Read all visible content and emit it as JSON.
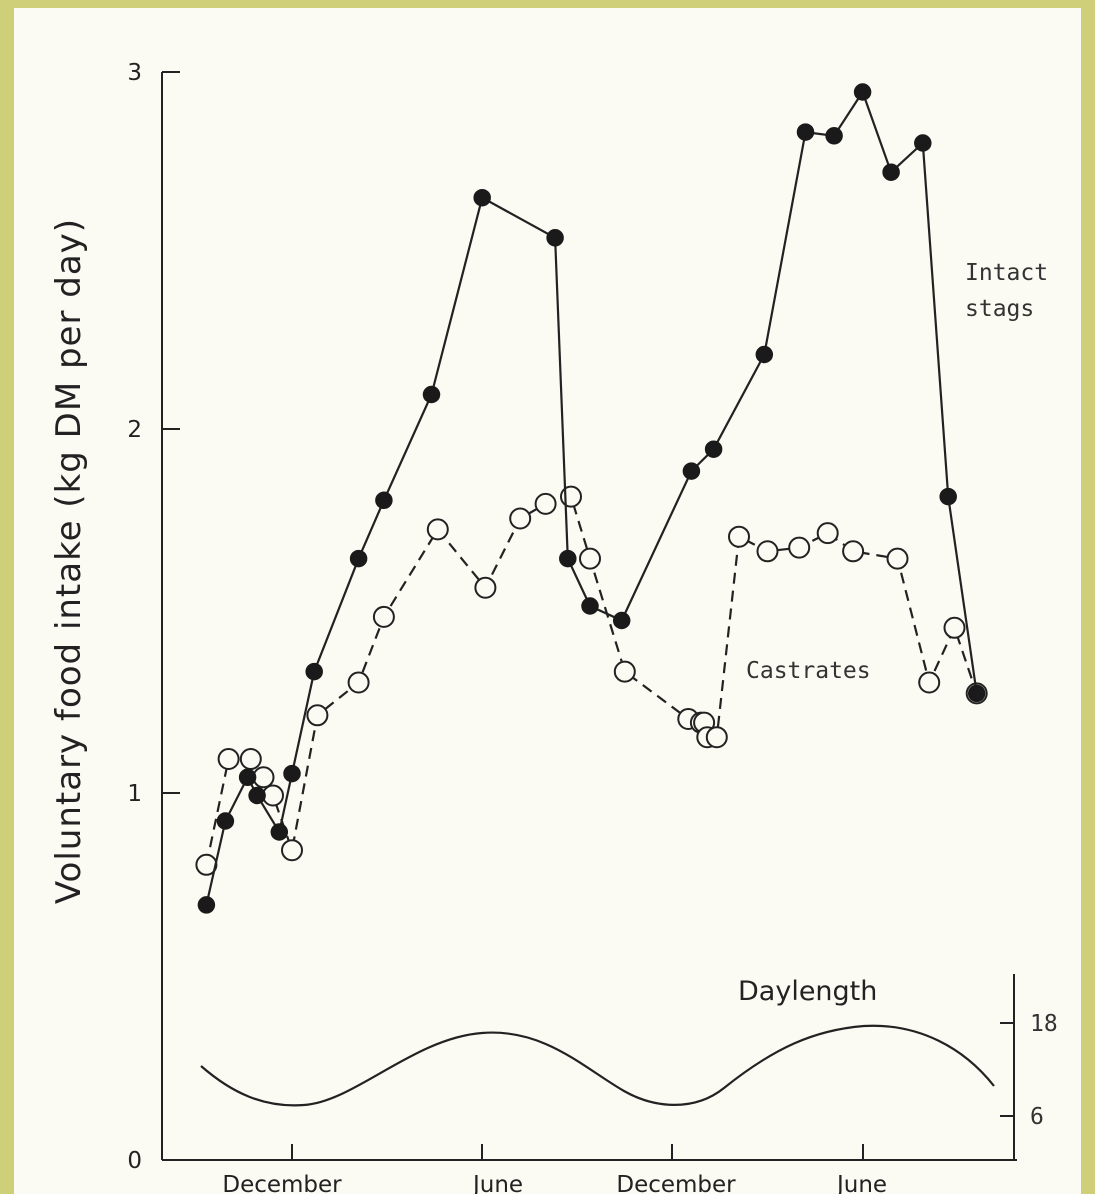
{
  "chart_data": {
    "type": "line",
    "ylabel": "Voluntary food intake (kg DM per day)",
    "xlabel": "",
    "ylim": [
      0,
      3
    ],
    "y_ticks": [
      "0",
      "1",
      "2",
      "3"
    ],
    "x_ticks": [
      {
        "label": "December",
        "month": 0
      },
      {
        "label": "June",
        "month": 6
      },
      {
        "label": "December",
        "month": 12
      },
      {
        "label": "June",
        "month": 18
      }
    ],
    "xlim": [
      -2.8,
      22.3
    ],
    "series": [
      {
        "name": "Intact stags",
        "style": "solid",
        "marker": "filled",
        "x": [
          -2.7,
          -2.1,
          -1.4,
          -1.1,
          -0.4,
          0,
          0.7,
          2.1,
          2.9,
          4.4,
          6.0,
          8.3,
          8.7,
          9.4,
          10.4,
          12.6,
          13.3,
          14.9,
          16.2,
          17.1,
          18.0,
          18.9,
          19.9,
          20.7,
          21.6
        ],
        "values": [
          0.7,
          0.93,
          1.05,
          1.0,
          0.9,
          1.06,
          1.34,
          1.65,
          1.81,
          2.1,
          2.64,
          2.53,
          1.65,
          1.52,
          1.48,
          1.89,
          1.95,
          2.21,
          2.82,
          2.81,
          2.93,
          2.71,
          2.79,
          1.82,
          1.28
        ]
      },
      {
        "name": "Castrates",
        "style": "dashed",
        "marker": "open",
        "x": [
          -2.7,
          -2.0,
          -1.3,
          -0.9,
          -0.6,
          0,
          0.8,
          2.1,
          2.9,
          4.6,
          6.1,
          7.2,
          8.0,
          8.8,
          9.4,
          10.5,
          12.5,
          12.9,
          13.0,
          13.1,
          13.4,
          14.1,
          15.0,
          16.0,
          16.9,
          17.7,
          19.1,
          20.1,
          20.9,
          21.6
        ],
        "values": [
          0.81,
          1.1,
          1.1,
          1.05,
          1.0,
          0.85,
          1.22,
          1.31,
          1.49,
          1.73,
          1.57,
          1.76,
          1.8,
          1.82,
          1.65,
          1.34,
          1.21,
          1.2,
          1.2,
          1.16,
          1.16,
          1.71,
          1.67,
          1.68,
          1.72,
          1.67,
          1.65,
          1.31,
          1.46,
          1.28
        ]
      }
    ],
    "annotations": {
      "intact_line1": "Intact",
      "intact_line2": "stags",
      "castrates": "Castrates",
      "daylength": "Daylength"
    },
    "daylength": {
      "right_axis_ticks": [
        "6",
        "18"
      ],
      "min_hours": 6,
      "max_hours": 18
    }
  }
}
